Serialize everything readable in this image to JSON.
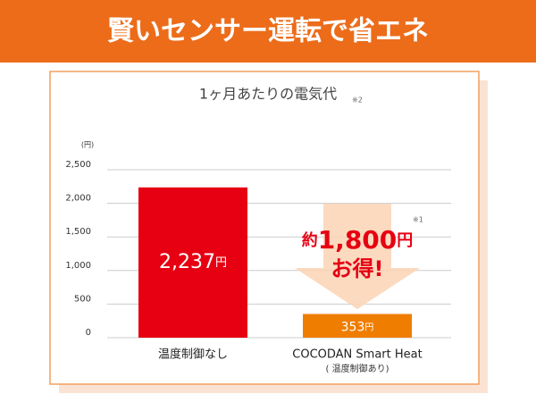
{
  "header": {
    "title": "賢いセンサー運転で省エネ"
  },
  "chart_data": {
    "type": "bar",
    "title": "1ヶ月あたりの電気代",
    "title_note": "※2",
    "y_label": "(円)",
    "categories": [
      "温度制御なし",
      "COCODAN Smart Heat"
    ],
    "category_subtitle": "( 温度制御あり)",
    "values": [
      2237,
      353
    ],
    "value_labels": [
      "2,237",
      "353"
    ],
    "value_unit": "円",
    "colors": [
      "#e60012",
      "#ef7d00"
    ],
    "ylim": [
      0,
      2500
    ],
    "yticks": [
      0,
      500,
      {
        "value": 1000,
        "label": "1,000"
      },
      {
        "value": 1500,
        "label": "1,500"
      },
      {
        "value": 2000,
        "label": "2,000"
      },
      {
        "value": 2500,
        "label": "2,500"
      }
    ],
    "grid": true,
    "annotation": {
      "prefix": "約",
      "amount": "1,800",
      "unit": "円",
      "suffix": "お得!",
      "note": "※1"
    }
  }
}
